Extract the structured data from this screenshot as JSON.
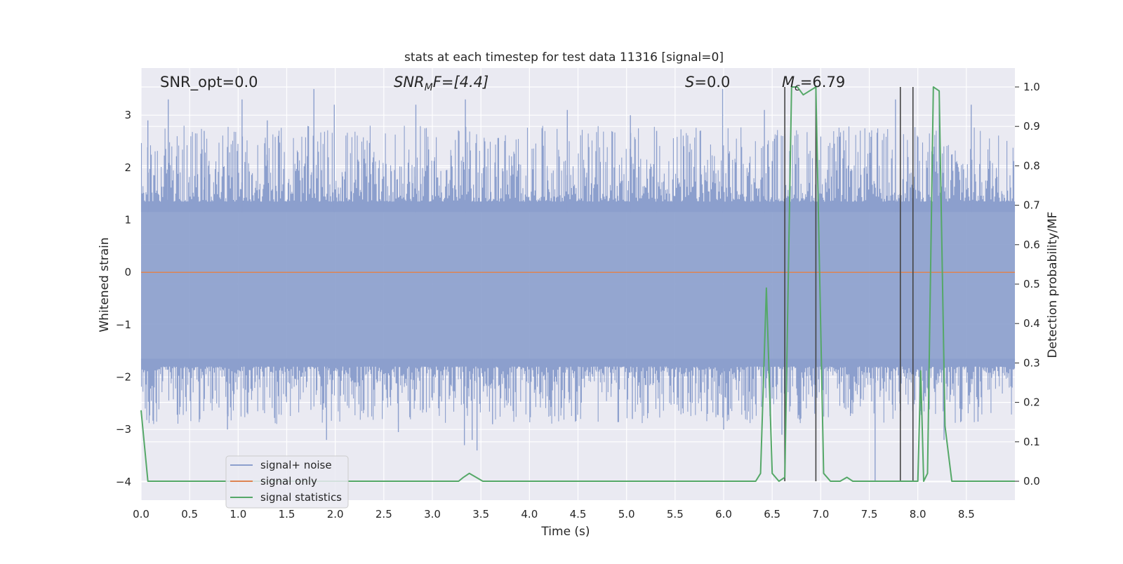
{
  "chart_data": {
    "type": "line",
    "title": "stats at each timestep for test data 11316 [signal=0]",
    "xlabel": "Time (s)",
    "ylabel": "Whitened strain",
    "y2label": "Detection probability/MF",
    "xlim": [
      0.0,
      9.0
    ],
    "ylim": [
      -4.35,
      3.9
    ],
    "y2lim": [
      -0.048,
      1.048
    ],
    "x_ticks": [
      0.0,
      0.5,
      1.0,
      1.5,
      2.0,
      2.5,
      3.0,
      3.5,
      4.0,
      4.5,
      5.0,
      5.5,
      6.0,
      6.5,
      7.0,
      7.5,
      8.0,
      8.5
    ],
    "x_tick_labels": [
      "0.0",
      "0.5",
      "1.0",
      "1.5",
      "2.0",
      "2.5",
      "3.0",
      "3.5",
      "4.0",
      "4.5",
      "5.0",
      "5.5",
      "6.0",
      "6.5",
      "7.0",
      "7.5",
      "8.0",
      "8.5"
    ],
    "y_ticks": [
      3,
      2,
      1,
      0,
      -1,
      -2,
      -3,
      -4
    ],
    "y_tick_labels": [
      "3",
      "2",
      "1",
      "0",
      "−1",
      "−2",
      "−3",
      "−4"
    ],
    "y2_ticks": [
      1.0,
      0.9,
      0.8,
      0.7,
      0.6,
      0.5,
      0.4,
      0.3,
      0.2,
      0.1,
      0.0
    ],
    "y2_tick_labels": [
      "1.0",
      "0.9",
      "0.8",
      "0.7",
      "0.6",
      "0.5",
      "0.4",
      "0.3",
      "0.2",
      "0.1",
      "0.0"
    ],
    "grid": true,
    "legend_position": "lower-left",
    "annotations": {
      "snr_opt": "SNR_opt=0.0",
      "snr_mf_main": "SNR",
      "snr_mf_sub": "M",
      "snr_mf_rest": "F=[4.4]",
      "s_main": "S",
      "s_rest": "=0.0",
      "mc_main": "M",
      "mc_sub": "c",
      "mc_rest": "=6.79"
    },
    "series": [
      {
        "name": "signal+ noise",
        "color": "#8c9fcd",
        "kind": "noise",
        "noise_band": [
          -1.75,
          1.25
        ],
        "peak_spikes": [
          [
            0.07,
            2.9
          ],
          [
            0.28,
            3.3
          ],
          [
            0.65,
            2.7
          ],
          [
            1.04,
            3.3
          ],
          [
            1.3,
            2.9
          ],
          [
            1.78,
            3.5
          ],
          [
            1.99,
            3.2
          ],
          [
            2.83,
            3.2
          ],
          [
            3.34,
            3.3
          ],
          [
            4.39,
            3.1
          ],
          [
            5.04,
            3.0
          ],
          [
            5.31,
            2.7
          ],
          [
            5.99,
            3.5
          ],
          [
            6.42,
            3.1
          ],
          [
            7.77,
            3.3
          ],
          [
            8.22,
            3.2
          ],
          [
            8.55,
            3.2
          ]
        ],
        "trough_spikes": [
          [
            0.89,
            -3.0
          ],
          [
            1.91,
            -3.2
          ],
          [
            2.65,
            -3.05
          ],
          [
            3.33,
            -3.3
          ],
          [
            3.41,
            -3.2
          ],
          [
            3.46,
            -3.4
          ],
          [
            3.62,
            -2.9
          ],
          [
            5.06,
            -2.8
          ],
          [
            6.0,
            -3.0
          ],
          [
            6.6,
            -3.1
          ],
          [
            7.56,
            -4.0
          ],
          [
            8.11,
            -3.0
          ],
          [
            8.27,
            -3.2
          ],
          [
            8.62,
            -2.85
          ]
        ]
      },
      {
        "name": "signal only",
        "color": "#dd8452",
        "kind": "flat",
        "value": 0.0
      },
      {
        "name": "signal statistics",
        "color": "#55a868",
        "axis": "right",
        "x": [
          0.0,
          0.07,
          0.13,
          3.27,
          3.32,
          3.38,
          3.45,
          3.52,
          6.33,
          6.38,
          6.44,
          6.5,
          6.57,
          6.63,
          6.7,
          6.76,
          6.82,
          6.95,
          7.03,
          7.1,
          7.2,
          7.27,
          7.33,
          7.4,
          8.0,
          8.03,
          8.06,
          8.1,
          8.16,
          8.22,
          8.28,
          8.35,
          8.42,
          8.5,
          8.56,
          9.0
        ],
        "y": [
          0.18,
          0.0,
          0.0,
          0.0,
          0.01,
          0.02,
          0.01,
          0.0,
          0.0,
          0.02,
          0.49,
          0.02,
          0.0,
          0.01,
          1.0,
          1.0,
          0.98,
          1.0,
          0.02,
          0.0,
          0.0,
          0.01,
          0.0,
          0.0,
          0.0,
          0.28,
          0.0,
          0.02,
          1.0,
          0.99,
          0.14,
          0.0,
          0.0,
          0.0,
          0.0,
          0.0
        ]
      }
    ],
    "event_markers": {
      "color": "#444444",
      "axis": "right",
      "lines": [
        {
          "x": 6.63,
          "y0": 0.0,
          "y1": 1.0
        },
        {
          "x": 6.95,
          "y0": 0.0,
          "y1": 1.0
        },
        {
          "x": 7.82,
          "y0": 0.0,
          "y1": 1.0
        },
        {
          "x": 7.95,
          "y0": 0.0,
          "y1": 1.0
        }
      ]
    },
    "colors": {
      "plot_bg": "#eaeaf2",
      "grid": "#ffffff"
    }
  }
}
